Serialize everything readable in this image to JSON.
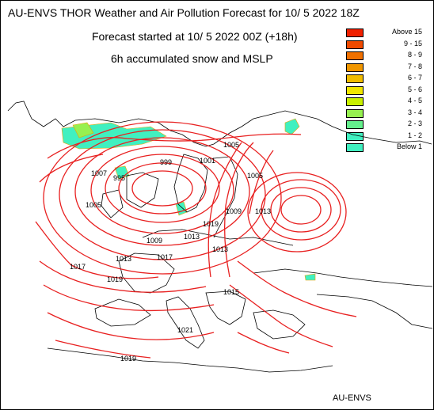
{
  "header": {
    "title": "AU-ENVS THOR Weather and Air Pollution Forecast for 10/ 5 2022  18Z",
    "subtitle": "Forecast started at 10/ 5 2022  00Z (+18h)",
    "field": "6h accumulated snow and MSLP"
  },
  "legend": [
    {
      "label": "Above   15",
      "color": "#f02000"
    },
    {
      "label": "9 - 15",
      "color": "#f04a00"
    },
    {
      "label": "8 -  9",
      "color": "#f07000"
    },
    {
      "label": "7 -  8",
      "color": "#f09600"
    },
    {
      "label": "6 -  7",
      "color": "#f0bc00"
    },
    {
      "label": "5 -  6",
      "color": "#f0e600"
    },
    {
      "label": "4 -  5",
      "color": "#c8f000"
    },
    {
      "label": "3 -  4",
      "color": "#96f050"
    },
    {
      "label": "2 -  3",
      "color": "#64f08c"
    },
    {
      "label": "1 -  2",
      "color": "#40f0c0"
    },
    {
      "label": "Below   1",
      "color": "#40f0c0"
    }
  ],
  "isobar_labels": [
    "1007",
    "999",
    "995",
    "1001",
    "1005",
    "1005",
    "1013",
    "1009",
    "1013",
    "1017",
    "1019",
    "1017",
    "1013",
    "1005",
    "1021",
    "1019",
    "1013",
    "1009",
    "1015",
    "1019"
  ],
  "footer": "AU-ENVS",
  "colors": {
    "isobar": "#e82020",
    "coast": "#000000",
    "snow": "#40f0c0"
  }
}
